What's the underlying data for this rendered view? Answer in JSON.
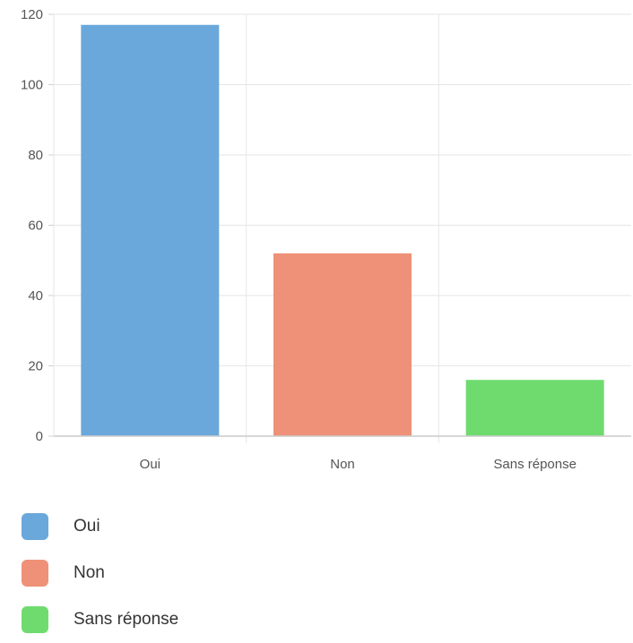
{
  "chart_data": {
    "type": "bar",
    "categories": [
      "Oui",
      "Non",
      "Sans réponse"
    ],
    "values": [
      117,
      52,
      16
    ],
    "colors": [
      "#6aa8db",
      "#ee9178",
      "#6fdb6f"
    ],
    "ylim": [
      0,
      120
    ],
    "yticks": [
      0,
      20,
      40,
      60,
      80,
      100,
      120
    ],
    "ytick_labels": [
      "0",
      "20",
      "40",
      "60",
      "80",
      "100",
      "120"
    ],
    "grid": true,
    "legend_position": "bottom-left",
    "title": "",
    "xlabel": "",
    "ylabel": ""
  },
  "legend": {
    "items": [
      {
        "label": "Oui",
        "color": "#6aa8db"
      },
      {
        "label": "Non",
        "color": "#ee9178"
      },
      {
        "label": "Sans réponse",
        "color": "#6fdb6f"
      }
    ]
  }
}
